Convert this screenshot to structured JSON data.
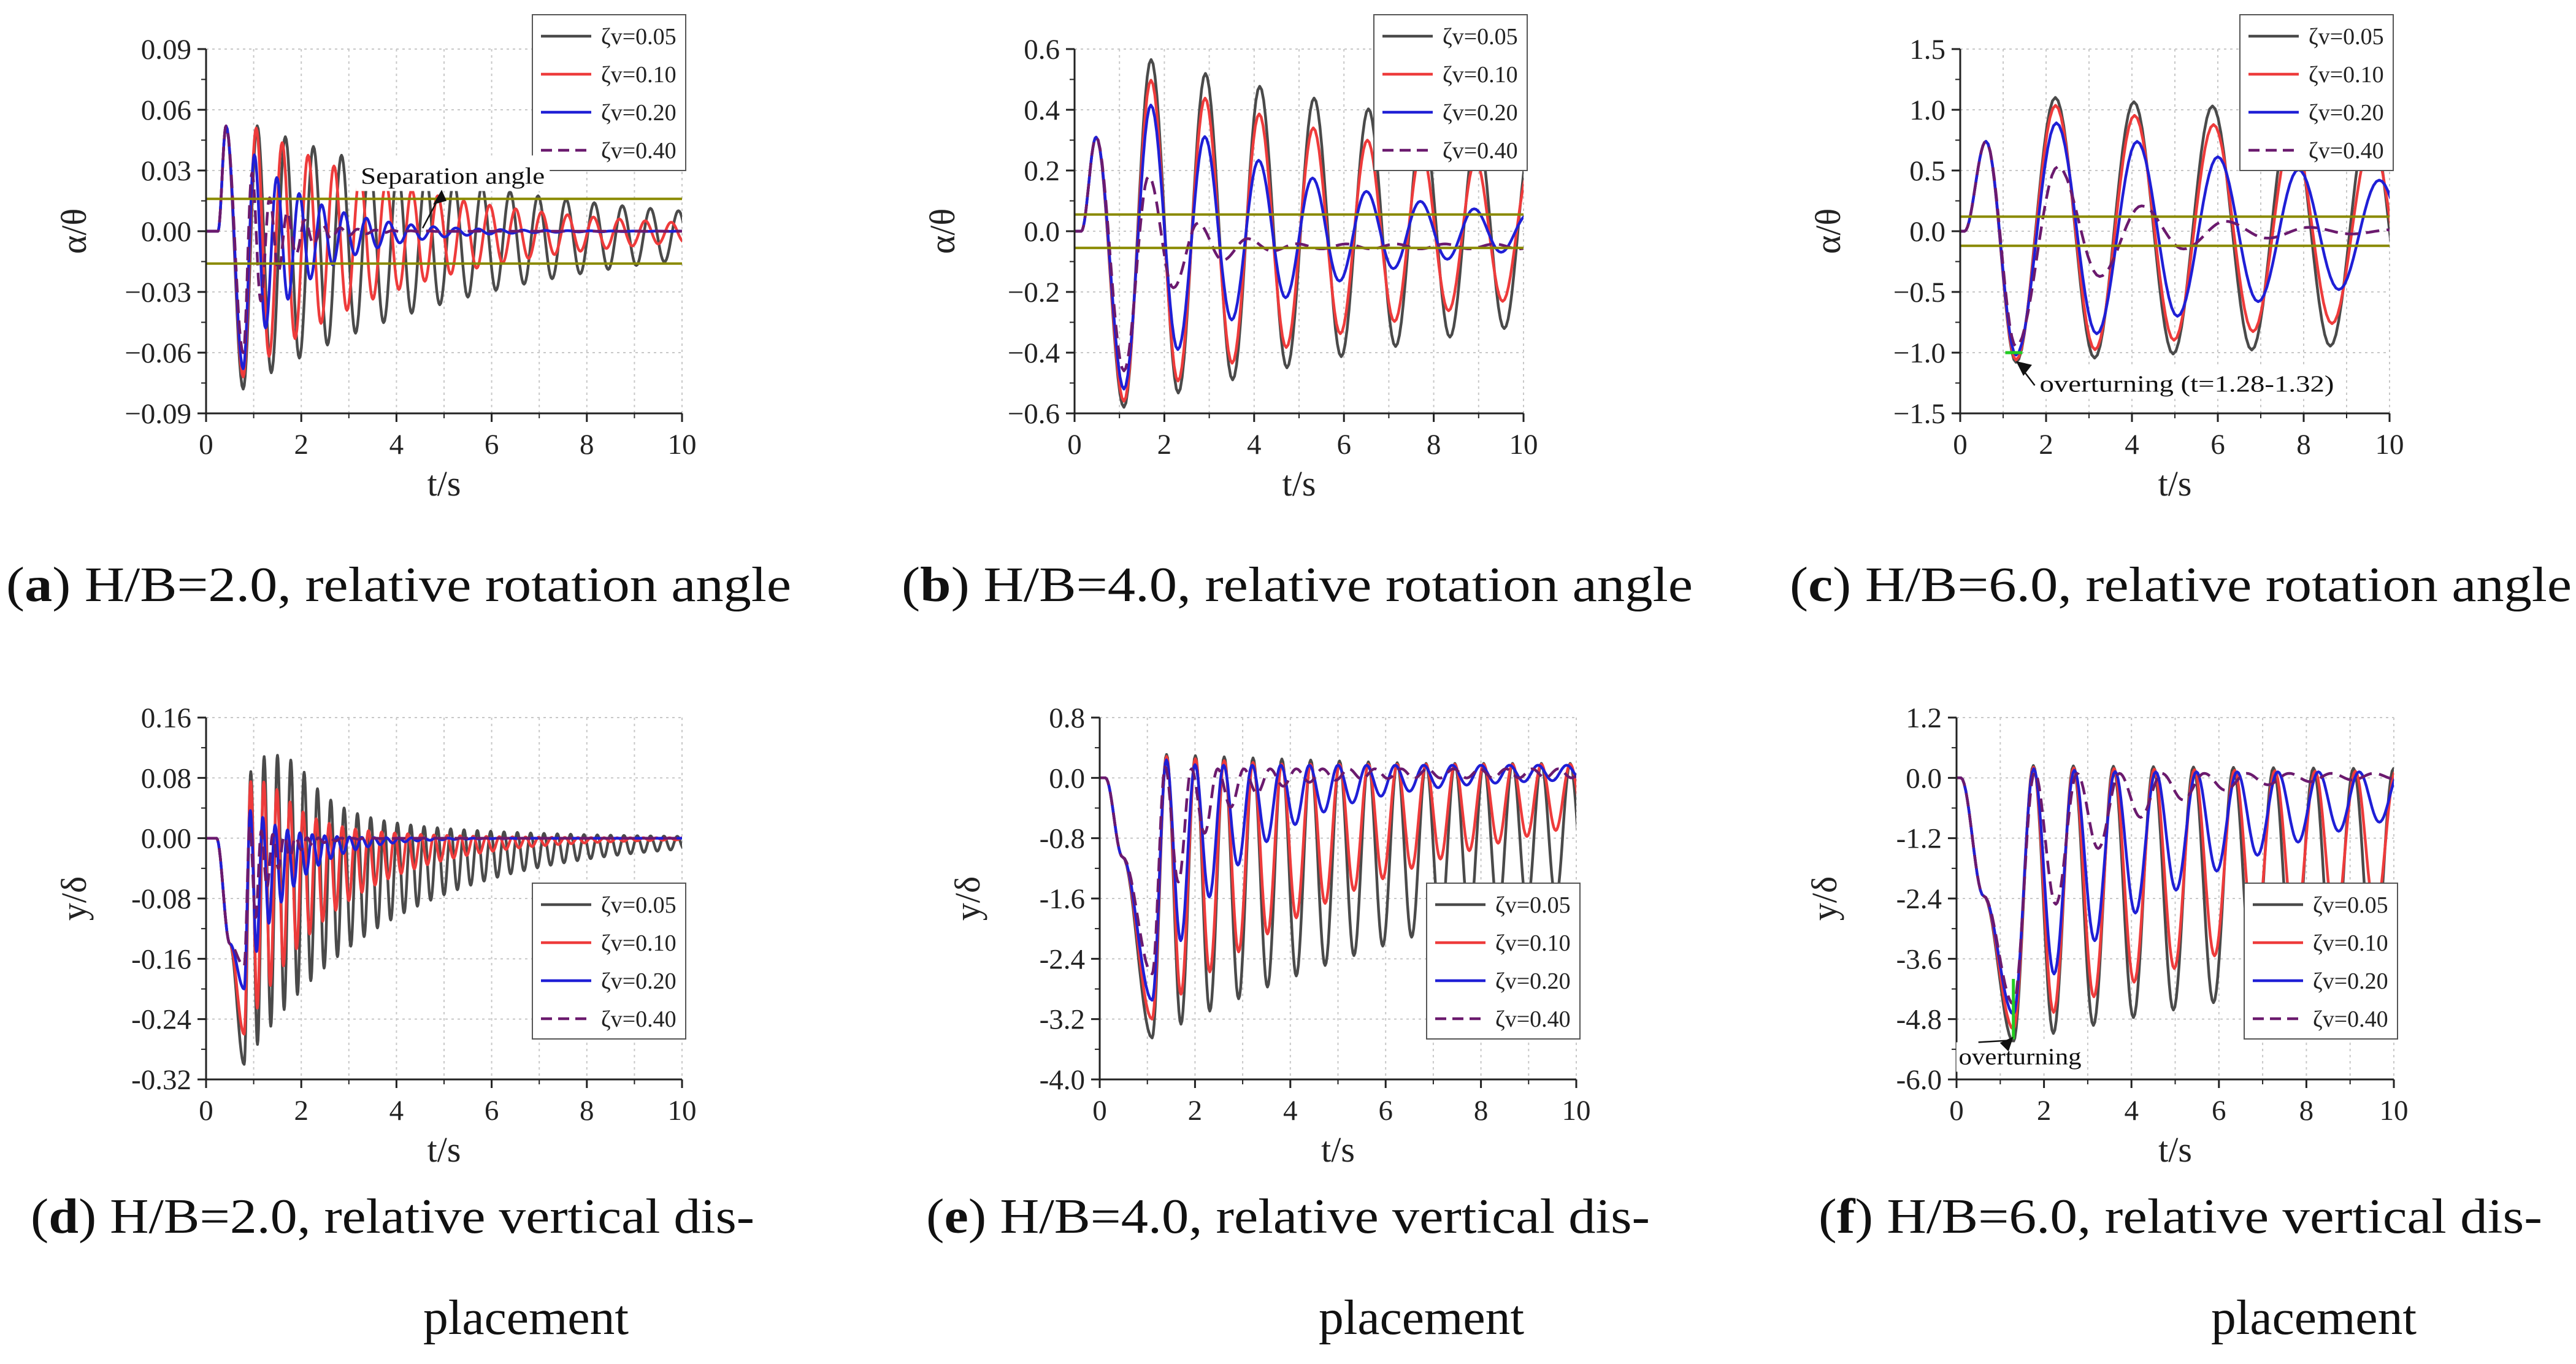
{
  "colors": {
    "zeta_0_05": "#4a4a4a",
    "zeta_0_10": "#ee3b3b",
    "zeta_0_20": "#1f1fd6",
    "zeta_0_40": "#6b1a6e",
    "threshold": "#8a8a00",
    "marker": "#22cc22",
    "grid": "#c8c8c8",
    "axis": "#222222"
  },
  "chart_data": [
    {
      "id": "a",
      "type": "line",
      "caption_letter": "a",
      "caption": ") H/B=2.0, relative rotation angle",
      "xlabel": "t/s",
      "ylabel": "α/θ",
      "xlim": [
        0,
        10
      ],
      "ylim": [
        -0.09,
        0.09
      ],
      "xticks": [
        "0",
        "2",
        "4",
        "6",
        "8",
        "10"
      ],
      "yticks": [
        "-0.09",
        "-0.06",
        "-0.03",
        "0.00",
        "0.03",
        "0.06",
        "0.09"
      ],
      "ytick_labels": [
        "−0.09",
        "−0.06",
        "−0.03",
        "0.00",
        "0.03",
        "0.06",
        "0.09"
      ],
      "grid": true,
      "legend_position": "top-right",
      "thresholds": [
        0.016,
        -0.016
      ],
      "annotation": {
        "text": "Separation angle",
        "x": 3.25,
        "y": 0.0235,
        "tip_x": 4.6,
        "tip_y": 0.016
      },
      "series": [
        {
          "name": "ζv=0.05",
          "color_key": "zeta_0_05",
          "dashed": false
        },
        {
          "name": "ζv=0.10",
          "color_key": "zeta_0_10",
          "dashed": false
        },
        {
          "name": "ζv=0.20",
          "color_key": "zeta_0_20",
          "dashed": false
        },
        {
          "name": "ζv=0.40",
          "color_key": "zeta_0_40",
          "dashed": true
        }
      ],
      "model": {
        "kind": "rot",
        "onset": 0.25,
        "t0": 0.42,
        "a0": 0.052,
        "t1": 0.78,
        "a1": -0.078,
        "period": [
          0.59,
          0.545,
          0.47,
          0.37
        ],
        "peak": [
          0.055,
          0.055,
          0.045,
          0.038
        ],
        "trough": [
          -0.078,
          -0.072,
          -0.068,
          -0.06
        ],
        "decay": [
          0.185,
          0.28,
          0.75,
          1.5
        ],
        "floor": [
          0.0045,
          0.001,
          0.0,
          0.0
        ],
        "offset": [
          0,
          0,
          0,
          0
        ]
      }
    },
    {
      "id": "b",
      "type": "line",
      "caption_letter": "b",
      "caption": ") H/B=4.0, relative rotation angle",
      "xlabel": "t/s",
      "ylabel": "α/θ",
      "xlim": [
        0,
        10
      ],
      "ylim": [
        -0.6,
        0.6
      ],
      "xticks": [
        "0",
        "2",
        "4",
        "6",
        "8",
        "10"
      ],
      "yticks": [
        "-0.6",
        "-0.4",
        "-0.2",
        "0.0",
        "0.2",
        "0.4",
        "0.6"
      ],
      "ytick_labels": [
        "−0.6",
        "−0.4",
        "−0.2",
        "0.0",
        "0.2",
        "0.4",
        "0.6"
      ],
      "grid": true,
      "legend_position": "top-right",
      "thresholds": [
        0.055,
        -0.055
      ],
      "series": [
        {
          "name": "ζv=0.05",
          "color_key": "zeta_0_05",
          "dashed": false
        },
        {
          "name": "ζv=0.10",
          "color_key": "zeta_0_10",
          "dashed": false
        },
        {
          "name": "ζv=0.20",
          "color_key": "zeta_0_20",
          "dashed": false
        },
        {
          "name": "ζv=0.40",
          "color_key": "zeta_0_40",
          "dashed": true
        }
      ],
      "model": {
        "kind": "rot",
        "onset": 0.15,
        "t0": 0.48,
        "a0": 0.31,
        "t1": 1.1,
        "a1": -0.58,
        "period": [
          1.21,
          1.205,
          1.2,
          1.1
        ],
        "peak": [
          0.59,
          0.53,
          0.48,
          0.35
        ],
        "trough": [
          -0.58,
          -0.56,
          -0.52,
          -0.46
        ],
        "decay": [
          0.07,
          0.105,
          0.24,
          1.0
        ],
        "floor": [
          0.0,
          0.0,
          0.0,
          0.02
        ],
        "offset": [
          0,
          0,
          0,
          -0.05
        ]
      }
    },
    {
      "id": "c",
      "type": "line",
      "caption_letter": "c",
      "caption": ") H/B=6.0, relative rotation angle",
      "xlabel": "t/s",
      "ylabel": "α/θ",
      "xlim": [
        0,
        10
      ],
      "ylim": [
        -1.5,
        1.5
      ],
      "xticks": [
        "0",
        "2",
        "4",
        "6",
        "8",
        "10"
      ],
      "yticks": [
        "-1.5",
        "-1.0",
        "-0.5",
        "0.0",
        "0.5",
        "1.0",
        "1.5"
      ],
      "ytick_labels": [
        "−1.5",
        "−1.0",
        "−0.5",
        "0.0",
        "0.5",
        "1.0",
        "1.5"
      ],
      "grid": true,
      "legend_position": "top-right",
      "thresholds": [
        0.12,
        -0.12
      ],
      "annotation": {
        "text": "overturning (t=1.28-1.32)",
        "x": 1.85,
        "y": -1.32,
        "tip_x": 1.3,
        "tip_y": -1.07
      },
      "series": [
        {
          "name": "ζv=0.05",
          "color_key": "zeta_0_05",
          "dashed": false
        },
        {
          "name": "ζv=0.10",
          "color_key": "zeta_0_10",
          "dashed": false
        },
        {
          "name": "ζv=0.20",
          "color_key": "zeta_0_20",
          "dashed": false
        },
        {
          "name": "ζv=0.40",
          "color_key": "zeta_0_40",
          "dashed": true
        }
      ],
      "model": {
        "kind": "rot",
        "onset": 0.1,
        "t0": 0.6,
        "a0": 0.74,
        "t1": 1.3,
        "a1": -1.08,
        "period": [
          1.83,
          1.84,
          1.88,
          1.95
        ],
        "peak": [
          1.12,
          1.08,
          0.98,
          0.85
        ],
        "trough": [
          -1.08,
          -1.06,
          -1.02,
          -0.95
        ],
        "decay": [
          0.018,
          0.045,
          0.1,
          0.48
        ],
        "floor": [
          0.0,
          0.0,
          0.0,
          0.0
        ],
        "offset": [
          0,
          0,
          0,
          0
        ]
      }
    },
    {
      "id": "d",
      "type": "line",
      "caption_letter": "d",
      "caption": ") H/B=2.0, relative vertical dis-",
      "caption_line2": "placement",
      "xlabel": "t/s",
      "ylabel": "y/δ",
      "xlim": [
        0,
        10
      ],
      "ylim": [
        -0.32,
        0.16
      ],
      "xticks": [
        "0",
        "2",
        "4",
        "6",
        "8",
        "10"
      ],
      "yticks": [
        "-0.32",
        "-0.24",
        "-0.16",
        "-0.08",
        "0.00",
        "0.08",
        "0.16"
      ],
      "ytick_labels": [
        "-0.32",
        "-0.24",
        "-0.16",
        "-0.08",
        "0.00",
        "0.08",
        "0.16"
      ],
      "grid": true,
      "legend_position": "lower-right",
      "series": [
        {
          "name": "ζv=0.05",
          "color_key": "zeta_0_05",
          "dashed": false
        },
        {
          "name": "ζv=0.10",
          "color_key": "zeta_0_10",
          "dashed": false
        },
        {
          "name": "ζv=0.20",
          "color_key": "zeta_0_20",
          "dashed": false
        },
        {
          "name": "ζv=0.40",
          "color_key": "zeta_0_40",
          "dashed": true
        }
      ],
      "model": {
        "kind": "disp",
        "onset": 0.22,
        "t0": 0.5,
        "a0": -0.14,
        "t1": 0.8,
        "a1": -0.3,
        "period": [
          0.28,
          0.275,
          0.26,
          0.24
        ],
        "peak": [
          0.11,
          0.075,
          0.04,
          0.02
        ],
        "trough": [
          -0.3,
          -0.26,
          -0.2,
          -0.17
        ],
        "decay": [
          0.33,
          0.52,
          1.1,
          2.0
        ],
        "floor": [
          0.004,
          0.002,
          0.0,
          0.0
        ],
        "offset": [
          0,
          0,
          0,
          0
        ],
        "peak_time": [
          1.6,
          1.2,
          0.85,
          0.8
        ]
      }
    },
    {
      "id": "e",
      "type": "line",
      "caption_letter": "e",
      "caption": ") H/B=4.0, relative vertical dis-",
      "caption_line2": "placement",
      "xlabel": "t/s",
      "ylabel": "y/δ",
      "xlim": [
        0,
        10
      ],
      "ylim": [
        -4.0,
        0.8
      ],
      "xticks": [
        "0",
        "2",
        "4",
        "6",
        "8",
        "10"
      ],
      "yticks": [
        "-4.0",
        "-3.2",
        "-2.4",
        "-1.6",
        "-0.8",
        "0.0",
        "0.8"
      ],
      "ytick_labels": [
        "-4.0",
        "-3.2",
        "-2.4",
        "-1.6",
        "-0.8",
        "0.0",
        "0.8"
      ],
      "grid": true,
      "legend_position": "lower-right",
      "series": [
        {
          "name": "ζv=0.05",
          "color_key": "zeta_0_05",
          "dashed": false
        },
        {
          "name": "ζv=0.10",
          "color_key": "zeta_0_10",
          "dashed": false
        },
        {
          "name": "ζv=0.20",
          "color_key": "zeta_0_20",
          "dashed": false
        },
        {
          "name": "ζv=0.40",
          "color_key": "zeta_0_40",
          "dashed": true
        }
      ],
      "model": {
        "kind": "disp",
        "onset": 0.12,
        "t0": 0.48,
        "a0": -1.05,
        "t1": 1.1,
        "a1": -3.45,
        "period": [
          0.605,
          0.605,
          0.6,
          0.55
        ],
        "peak": [
          0.32,
          0.3,
          0.28,
          0.2
        ],
        "trough": [
          -3.45,
          -3.2,
          -2.95,
          -2.6
        ],
        "decay": [
          0.09,
          0.18,
          0.52,
          1.15
        ],
        "floor": [
          0.0,
          0.0,
          0.0,
          0.0
        ],
        "offset": [
          0,
          0,
          0,
          0
        ]
      }
    },
    {
      "id": "f",
      "type": "line",
      "caption_letter": "f",
      "caption": ") H/B=6.0, relative vertical dis-",
      "caption_line2": "placement",
      "xlabel": "t/s",
      "ylabel": "y/δ",
      "xlim": [
        0,
        10
      ],
      "ylim": [
        -6.0,
        1.2
      ],
      "xticks": [
        "0",
        "2",
        "4",
        "6",
        "8",
        "10"
      ],
      "yticks": [
        "-6.0",
        "-4.8",
        "-3.6",
        "-2.4",
        "-1.2",
        "0.0",
        "1.2"
      ],
      "ytick_labels": [
        "-6.0",
        "-4.8",
        "-3.6",
        "-2.4",
        "-1.2",
        "0.0",
        "1.2"
      ],
      "grid": true,
      "legend_position": "lower-right",
      "annotation": {
        "text": "overturning",
        "x": 0.05,
        "y": -5.7,
        "tip_x": 1.3,
        "tip_y": -5.15
      },
      "series": [
        {
          "name": "ζv=0.05",
          "color_key": "zeta_0_05",
          "dashed": false
        },
        {
          "name": "ζv=0.10",
          "color_key": "zeta_0_10",
          "dashed": false
        },
        {
          "name": "ζv=0.20",
          "color_key": "zeta_0_20",
          "dashed": false
        },
        {
          "name": "ζv=0.40",
          "color_key": "zeta_0_40",
          "dashed": true
        }
      ],
      "model": {
        "kind": "disp",
        "onset": 0.1,
        "t0": 0.62,
        "a0": -2.35,
        "t1": 1.3,
        "a1": -5.25,
        "period": [
          0.915,
          0.92,
          0.93,
          0.97
        ],
        "peak": [
          0.25,
          0.22,
          0.2,
          0.15
        ],
        "trough": [
          -5.25,
          -5.0,
          -4.7,
          -4.5
        ],
        "decay": [
          0.035,
          0.075,
          0.2,
          0.6
        ],
        "floor": [
          0.0,
          0.0,
          0.0,
          0.0
        ],
        "offset": [
          0,
          0,
          0,
          0
        ]
      }
    }
  ]
}
